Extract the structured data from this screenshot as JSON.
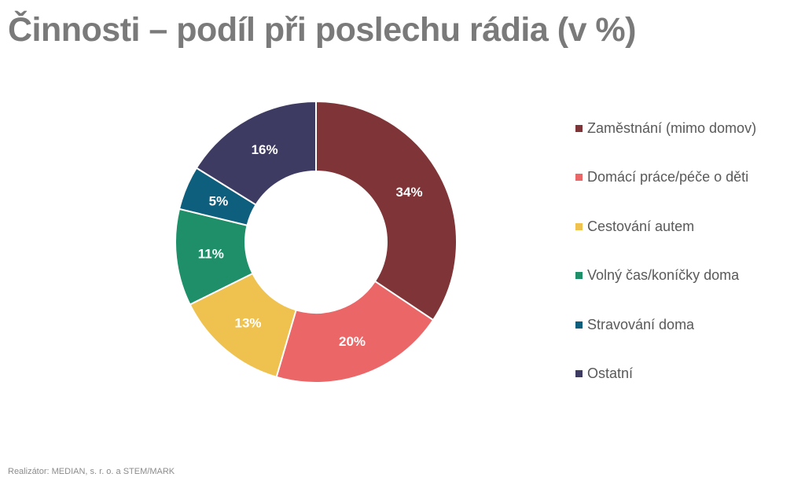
{
  "title": "Činnosti – podíl při poslechu rádia (v %)",
  "footer": "Realizátor: MEDIAN, s. r. o. a STEM/MARK",
  "chart_data": {
    "type": "pie",
    "donut": true,
    "legend_position": "right",
    "slices": [
      {
        "label": "Zaměstnání (mimo domov)",
        "value": 34,
        "display": "34%",
        "color": "#7f3437"
      },
      {
        "label": "Domácí práce/péče o děti",
        "value": 20,
        "display": "20%",
        "color": "#ea6667"
      },
      {
        "label": "Cestování autem",
        "value": 13,
        "display": "13%",
        "color": "#efc24f"
      },
      {
        "label": "Volný čas/koníčky doma",
        "value": 11,
        "display": "11%",
        "color": "#1e8f68"
      },
      {
        "label": "Stravování doma",
        "value": 5,
        "display": "5%",
        "color": "#0e5e7e"
      },
      {
        "label": "Ostatní",
        "value": 16,
        "display": "16%",
        "color": "#3e3b62"
      }
    ]
  }
}
